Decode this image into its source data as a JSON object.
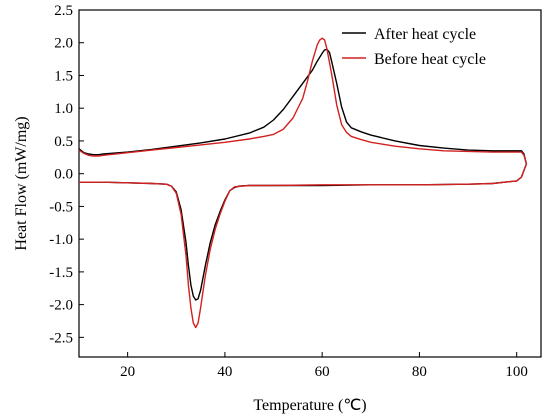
{
  "chart_data": {
    "type": "line",
    "title": "",
    "xlabel": "Temperature (℃)",
    "ylabel": "Heat Flow (mW/mg)",
    "xlim": [
      10,
      105
    ],
    "ylim": [
      -2.8,
      2.5
    ],
    "xticks": [
      20,
      40,
      60,
      80,
      100
    ],
    "yticks": [
      2.5,
      2.0,
      1.5,
      1.0,
      0.5,
      0.0,
      -0.5,
      -1.0,
      -1.5,
      -2.0,
      -2.5
    ],
    "grid": false,
    "legend_position": "top-right",
    "series": [
      {
        "name": "After heat cycle",
        "color": "#000000",
        "x": [
          10,
          11,
          12,
          13,
          14,
          15,
          20,
          25,
          30,
          35,
          40,
          45,
          48,
          50,
          52,
          54,
          56,
          58,
          59,
          60,
          60.5,
          61,
          61.5,
          62,
          63,
          64,
          65,
          66,
          68,
          70,
          75,
          80,
          85,
          90,
          95,
          101,
          101.5,
          102,
          101,
          100,
          95,
          90,
          80,
          70,
          60,
          50,
          45,
          43,
          42,
          41,
          40,
          39,
          38,
          37,
          36,
          35,
          34.5,
          34,
          33.5,
          33,
          32.5,
          32,
          31,
          30,
          29,
          28,
          25,
          20,
          15,
          10
        ],
        "y": [
          0.38,
          0.32,
          0.3,
          0.29,
          0.29,
          0.3,
          0.33,
          0.37,
          0.42,
          0.47,
          0.53,
          0.62,
          0.71,
          0.82,
          0.98,
          1.18,
          1.38,
          1.58,
          1.72,
          1.84,
          1.89,
          1.9,
          1.85,
          1.7,
          1.38,
          1.02,
          0.79,
          0.7,
          0.64,
          0.59,
          0.5,
          0.43,
          0.39,
          0.36,
          0.35,
          0.35,
          0.3,
          0.15,
          -0.05,
          -0.11,
          -0.15,
          -0.16,
          -0.17,
          -0.17,
          -0.18,
          -0.18,
          -0.18,
          -0.19,
          -0.21,
          -0.26,
          -0.4,
          -0.58,
          -0.78,
          -1.05,
          -1.4,
          -1.78,
          -1.91,
          -1.93,
          -1.87,
          -1.7,
          -1.4,
          -1.05,
          -0.55,
          -0.28,
          -0.19,
          -0.16,
          -0.15,
          -0.14,
          -0.13,
          -0.13
        ]
      },
      {
        "name": "Before heat cycle",
        "color": "#d32020",
        "x": [
          10,
          11,
          12,
          13,
          14,
          15,
          20,
          25,
          30,
          35,
          40,
          45,
          48,
          50,
          52,
          54,
          56,
          57,
          58,
          59,
          59.5,
          60,
          60.5,
          61,
          62,
          63,
          64,
          65,
          66,
          68,
          70,
          75,
          80,
          85,
          90,
          95,
          101,
          101.5,
          102,
          101,
          100,
          95,
          90,
          80,
          70,
          60,
          50,
          45,
          42,
          41,
          40,
          39,
          38,
          37,
          36,
          35,
          34.5,
          34,
          33.5,
          33,
          32.5,
          32,
          31,
          30,
          29,
          28,
          25,
          20,
          15,
          10
        ],
        "y": [
          0.36,
          0.31,
          0.28,
          0.27,
          0.27,
          0.28,
          0.32,
          0.36,
          0.4,
          0.44,
          0.48,
          0.53,
          0.57,
          0.6,
          0.68,
          0.85,
          1.15,
          1.42,
          1.72,
          1.97,
          2.04,
          2.07,
          2.04,
          1.9,
          1.5,
          1.05,
          0.75,
          0.63,
          0.57,
          0.52,
          0.48,
          0.42,
          0.38,
          0.35,
          0.34,
          0.33,
          0.33,
          0.28,
          0.15,
          -0.05,
          -0.11,
          -0.15,
          -0.16,
          -0.17,
          -0.17,
          -0.17,
          -0.18,
          -0.18,
          -0.2,
          -0.26,
          -0.42,
          -0.62,
          -0.85,
          -1.15,
          -1.55,
          -2.05,
          -2.28,
          -2.35,
          -2.28,
          -2.05,
          -1.7,
          -1.25,
          -0.62,
          -0.3,
          -0.19,
          -0.16,
          -0.15,
          -0.14,
          -0.13,
          -0.13
        ]
      }
    ]
  }
}
